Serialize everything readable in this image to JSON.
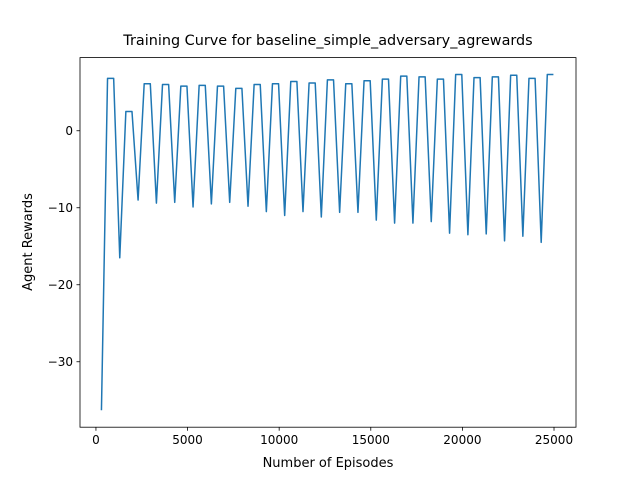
{
  "chart_data": {
    "type": "line",
    "title": "Training Curve for baseline_simple_adversary_agrewards",
    "x_label": "Number of Episodes",
    "y_label": "Agent Rewards",
    "xlim": [
      -870,
      26200
    ],
    "ylim": [
      -38.5,
      9.5
    ],
    "xticks": [
      0,
      5000,
      10000,
      15000,
      20000,
      25000
    ],
    "yticks": [
      {
        "value": -30,
        "label": "−30"
      },
      {
        "value": -20,
        "label": "−20"
      },
      {
        "value": -10,
        "label": "−10"
      },
      0
    ],
    "series": [
      {
        "color": "#1f77b4",
        "x": [
          300,
          633,
          967,
          1300,
          1633,
          1967,
          2300,
          2633,
          2967,
          3300,
          3633,
          3967,
          4300,
          4633,
          4967,
          5300,
          5633,
          5967,
          6300,
          6633,
          6967,
          7300,
          7633,
          7967,
          8300,
          8633,
          8967,
          9300,
          9633,
          9967,
          10300,
          10633,
          10967,
          11300,
          11633,
          11967,
          12300,
          12633,
          12967,
          13300,
          13633,
          13967,
          14300,
          14633,
          14967,
          15300,
          15633,
          15967,
          16300,
          16633,
          16967,
          17300,
          17633,
          17967,
          18300,
          18633,
          18967,
          19300,
          19633,
          19967,
          20300,
          20633,
          20967,
          21300,
          21633,
          21967,
          22300,
          22633,
          22967,
          23300,
          23633,
          23967,
          24300,
          24633,
          24967
        ],
        "values": [
          -36.3,
          6.8,
          6.8,
          -16.5,
          2.5,
          2.5,
          -9.0,
          6.1,
          6.1,
          -9.4,
          6.0,
          6.0,
          -9.3,
          5.8,
          5.8,
          -9.9,
          5.9,
          5.9,
          -9.5,
          5.8,
          5.8,
          -9.3,
          5.5,
          5.5,
          -9.8,
          6.0,
          6.0,
          -10.5,
          6.1,
          6.1,
          -11.0,
          6.4,
          6.4,
          -10.5,
          6.2,
          6.2,
          -11.2,
          6.6,
          6.6,
          -10.6,
          6.1,
          6.1,
          -10.6,
          6.5,
          6.5,
          -11.6,
          6.7,
          6.7,
          -12.0,
          7.1,
          7.1,
          -12.0,
          7.0,
          7.0,
          -11.8,
          6.7,
          6.7,
          -13.3,
          7.3,
          7.3,
          -13.5,
          6.9,
          6.9,
          -13.4,
          7.0,
          7.0,
          -14.3,
          7.2,
          7.2,
          -13.7,
          6.8,
          6.8,
          -14.5,
          7.3,
          7.3
        ]
      }
    ]
  }
}
